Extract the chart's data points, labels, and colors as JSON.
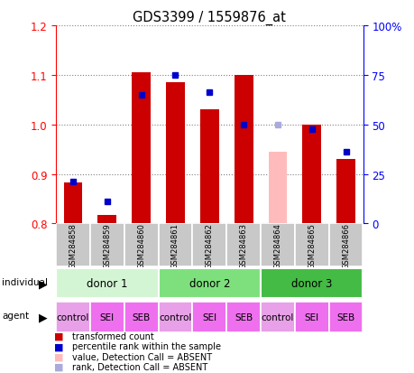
{
  "title": "GDS3399 / 1559876_at",
  "samples": [
    "GSM284858",
    "GSM284859",
    "GSM284860",
    "GSM284861",
    "GSM284862",
    "GSM284863",
    "GSM284864",
    "GSM284865",
    "GSM284866"
  ],
  "red_values": [
    0.882,
    0.818,
    1.105,
    1.085,
    1.03,
    1.1,
    null,
    1.0,
    0.93
  ],
  "blue_values": [
    0.885,
    0.845,
    1.06,
    1.1,
    1.065,
    1.0,
    null,
    0.99,
    0.945
  ],
  "absent_red_value": 0.945,
  "absent_blue_value": 1.0,
  "absent_index": 6,
  "ymin": 0.8,
  "ymax": 1.2,
  "y2min": 0,
  "y2max": 100,
  "yticks": [
    0.8,
    0.9,
    1.0,
    1.1,
    1.2
  ],
  "y2ticks": [
    0,
    25,
    50,
    75,
    100
  ],
  "y2ticklabels": [
    "0",
    "25",
    "50",
    "75",
    "100%"
  ],
  "donors": [
    {
      "label": "donor 1",
      "start": 0,
      "end": 3,
      "color": "#d4f5d4"
    },
    {
      "label": "donor 2",
      "start": 3,
      "end": 6,
      "color": "#7de07d"
    },
    {
      "label": "donor 3",
      "start": 6,
      "end": 9,
      "color": "#44bb44"
    }
  ],
  "agents": [
    "control",
    "SEI",
    "SEB",
    "control",
    "SEI",
    "SEB",
    "control",
    "SEI",
    "SEB"
  ],
  "agent_colors": [
    "#e8a0e8",
    "#ee80ee",
    "#ee80ee",
    "#e8a0e8",
    "#ee80ee",
    "#ee80ee",
    "#e8a0e8",
    "#ee80ee",
    "#ee80ee"
  ],
  "bar_color_red": "#cc0000",
  "bar_color_pink": "#ffbbbb",
  "dot_color_blue": "#0000cc",
  "dot_color_lightblue": "#aaaadd",
  "sample_bg_color": "#c8c8c8",
  "baseline": 0.8,
  "legend_items": [
    {
      "color": "#cc0000",
      "label": "transformed count"
    },
    {
      "color": "#0000cc",
      "label": "percentile rank within the sample"
    },
    {
      "color": "#ffbbbb",
      "label": "value, Detection Call = ABSENT"
    },
    {
      "color": "#aaaadd",
      "label": "rank, Detection Call = ABSENT"
    }
  ]
}
